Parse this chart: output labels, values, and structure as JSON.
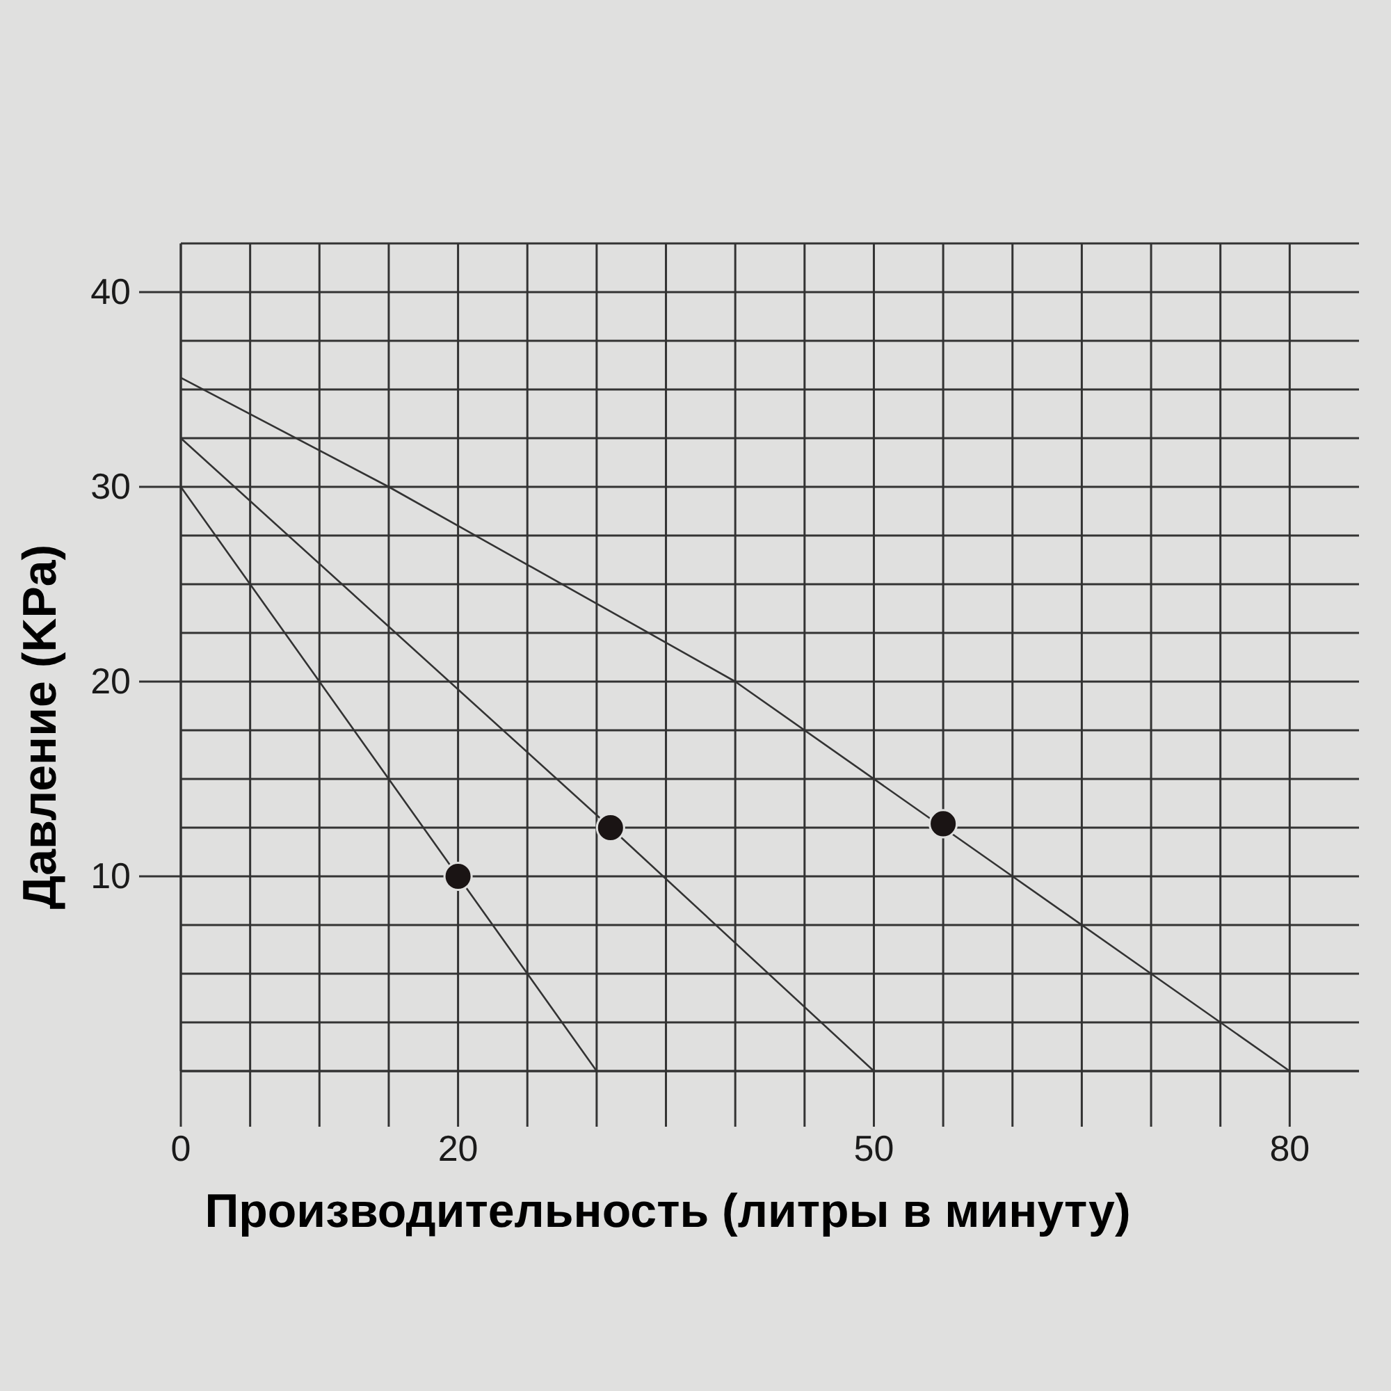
{
  "chart_data": {
    "type": "line",
    "xlabel": "Производительность (литры в минуту)",
    "ylabel": "Давление (KPa)",
    "xlim": [
      0,
      85
    ],
    "ylim": [
      0,
      42.5
    ],
    "xticks": [
      0,
      {
        "value": 5,
        "label": null
      },
      {
        "value": 10,
        "label": null
      },
      {
        "value": 15,
        "label": null
      },
      20,
      {
        "value": 25,
        "label": null
      },
      {
        "value": 30,
        "label": null
      },
      {
        "value": 35,
        "label": null
      },
      {
        "value": 40,
        "label": null
      },
      {
        "value": 45,
        "label": null
      },
      50,
      {
        "value": 55,
        "label": null
      },
      {
        "value": 60,
        "label": null
      },
      {
        "value": 65,
        "label": null
      },
      {
        "value": 70,
        "label": null
      },
      {
        "value": 75,
        "label": null
      },
      80
    ],
    "yticks": [
      {
        "value": 0,
        "label": null
      },
      {
        "value": 2.5,
        "label": null
      },
      {
        "value": 5,
        "label": null
      },
      {
        "value": 7.5,
        "label": null
      },
      10,
      {
        "value": 12.5,
        "label": null
      },
      {
        "value": 15,
        "label": null
      },
      {
        "value": 17.5,
        "label": null
      },
      20,
      {
        "value": 22.5,
        "label": null
      },
      {
        "value": 25,
        "label": null
      },
      {
        "value": 27.5,
        "label": null
      },
      30,
      {
        "value": 32.5,
        "label": null
      },
      {
        "value": 35,
        "label": null
      },
      {
        "value": 37.5,
        "label": null
      },
      40,
      {
        "value": 42.5,
        "label": null
      }
    ],
    "grid": true,
    "series": [
      {
        "color": "#333333",
        "x": [
          0,
          20,
          30
        ],
        "values": [
          30,
          10,
          0
        ]
      },
      {
        "color": "#333333",
        "x": [
          0,
          31,
          50
        ],
        "values": [
          32.5,
          12.5,
          0
        ]
      },
      {
        "color": "#333333",
        "x": [
          0,
          15,
          40,
          55,
          60,
          70,
          80
        ],
        "values": [
          35.6,
          30,
          20,
          12.5,
          10,
          5,
          0
        ]
      },
      {
        "type": "scatter",
        "color": "#1a1414",
        "marker": "circle",
        "x": [
          20,
          31,
          55
        ],
        "values": [
          10,
          12.5,
          12.7
        ]
      }
    ]
  }
}
